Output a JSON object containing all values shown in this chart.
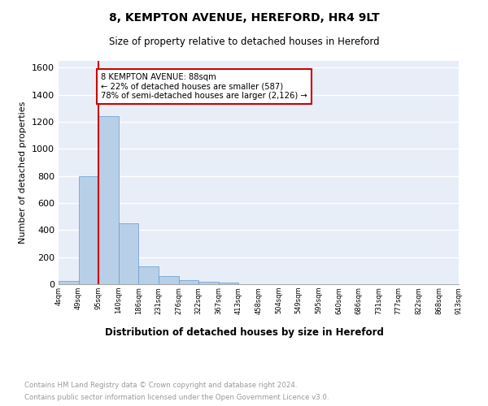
{
  "title1": "8, KEMPTON AVENUE, HEREFORD, HR4 9LT",
  "title2": "Size of property relative to detached houses in Hereford",
  "xlabel": "Distribution of detached houses by size in Hereford",
  "ylabel": "Number of detached properties",
  "bar_values": [
    25,
    800,
    1240,
    450,
    130,
    63,
    28,
    18,
    15,
    0,
    0,
    0,
    0,
    0,
    0,
    0,
    0,
    0,
    0,
    0
  ],
  "bar_labels": [
    "4sqm",
    "49sqm",
    "95sqm",
    "140sqm",
    "186sqm",
    "231sqm",
    "276sqm",
    "322sqm",
    "367sqm",
    "413sqm",
    "458sqm",
    "504sqm",
    "549sqm",
    "595sqm",
    "640sqm",
    "686sqm",
    "731sqm",
    "777sqm",
    "822sqm",
    "868sqm",
    "913sqm"
  ],
  "bar_color": "#b8cfe8",
  "bar_edge_color": "#6699cc",
  "background_color": "#e8eef8",
  "grid_color": "#ffffff",
  "vline_x": 2,
  "vline_color": "#cc0000",
  "annotation_box_text": "8 KEMPTON AVENUE: 88sqm\n← 22% of detached houses are smaller (587)\n78% of semi-detached houses are larger (2,126) →",
  "ylim": [
    0,
    1650
  ],
  "yticks": [
    0,
    200,
    400,
    600,
    800,
    1000,
    1200,
    1400,
    1600
  ],
  "footer_line1": "Contains HM Land Registry data © Crown copyright and database right 2024.",
  "footer_line2": "Contains public sector information licensed under the Open Government Licence v3.0.",
  "num_bars": 20
}
